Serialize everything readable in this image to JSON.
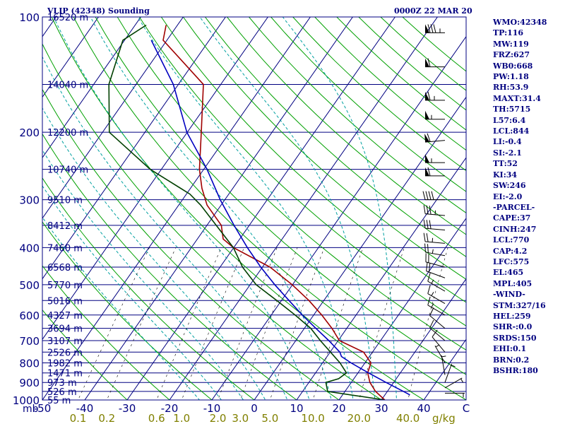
{
  "header": {
    "station": "VLIP (42348) Sounding",
    "time": "0000Z 22 MAR 20"
  },
  "colors": {
    "frame": "#000080",
    "isotherm": "#000080",
    "isobar": "#000080",
    "dry_adiabat": "#00a000",
    "moist_adiabat": "#00a0a0",
    "mixing_ratio": "#000000",
    "temperature": "#a00000",
    "dewpoint": "#004000",
    "parcel": "#0000c0",
    "mixing_label": "#808000",
    "wind_barb": "#000000"
  },
  "stats": [
    "WMO:42348",
    "TP:116",
    "MW:119",
    "FRZ:627",
    "WB0:668",
    "PW:1.18",
    "RH:53.9",
    "MAXT:31.4",
    "TH:5715",
    "L57:6.4",
    "LCL:844",
    "LI:-0.4",
    "SI:-2.1",
    "TT:52",
    "KI:34",
    "SW:246",
    "EI:-2.0",
    "-PARCEL-",
    "CAPE:37",
    "CINH:247",
    "LCL:770",
    "CAP:4.2",
    "LFC:575",
    "EL:465",
    "MPL:405",
    "-WIND-",
    "STM:327/16",
    "HEL:259",
    "SHR-:0.0",
    "SRDS:150",
    "EHI:0.1",
    "BRN:0.2",
    "BSHR:180"
  ],
  "chart_data": {
    "type": "line",
    "title": "VLIP (42348) Sounding",
    "subtitle": "0000Z 22 MAR 20",
    "x_axis": {
      "unit": "C",
      "range": [
        -50,
        50
      ],
      "ticks": [
        "-50",
        "-40",
        "-30",
        "-20",
        "-10",
        "0",
        "10",
        "20",
        "30",
        "40",
        "C"
      ]
    },
    "y_axis": {
      "unit": "mb",
      "scale": "log",
      "range": [
        100,
        1000
      ],
      "ticks": [
        100,
        200,
        300,
        400,
        500,
        600,
        700,
        800,
        900,
        1000
      ],
      "tick_labels": [
        "100",
        "200",
        "300",
        "400",
        "500",
        "600",
        "700",
        "800",
        "900",
        "1000"
      ],
      "unit_label": "mb"
    },
    "mixing_ratio_axis": {
      "labels": [
        "0.1",
        "0.2",
        "0.6",
        "1.0",
        "2.0",
        "3.0",
        "5.0",
        "10.0",
        "20.0",
        "40.0"
      ],
      "values": [
        0.1,
        0.2,
        0.6,
        1.0,
        2.0,
        3.0,
        5.0,
        10.0,
        20.0,
        40.0
      ],
      "unit": "g/kg"
    },
    "height_labels": [
      {
        "p": 100,
        "text": "16520 m"
      },
      {
        "p": 150,
        "text": "14040 m"
      },
      {
        "p": 200,
        "text": "12200 m"
      },
      {
        "p": 250,
        "text": "10740 m"
      },
      {
        "p": 300,
        "text": "9510 m"
      },
      {
        "p": 350,
        "text": "8412 m"
      },
      {
        "p": 400,
        "text": "7460 m"
      },
      {
        "p": 450,
        "text": "6568 m"
      },
      {
        "p": 500,
        "text": "5770 m"
      },
      {
        "p": 550,
        "text": "5016 m"
      },
      {
        "p": 600,
        "text": "4327 m"
      },
      {
        "p": 650,
        "text": "3694 m"
      },
      {
        "p": 700,
        "text": "3107 m"
      },
      {
        "p": 750,
        "text": "2526 m"
      },
      {
        "p": 800,
        "text": "1982 m"
      },
      {
        "p": 850,
        "text": "1471 m"
      },
      {
        "p": 900,
        "text": "973 m"
      },
      {
        "p": 950,
        "text": "526 m"
      },
      {
        "p": 1000,
        "text": "55 m"
      }
    ],
    "series": [
      {
        "name": "temperature",
        "color": "#a00000",
        "points": [
          [
            105,
            -82.7
          ],
          [
            115,
            -80.9
          ],
          [
            150,
            -64.1
          ],
          [
            200,
            -56.7
          ],
          [
            250,
            -51.0
          ],
          [
            280,
            -47.3
          ],
          [
            310,
            -43.3
          ],
          [
            350,
            -36.6
          ],
          [
            380,
            -33.9
          ],
          [
            400,
            -30.1
          ],
          [
            450,
            -18.2
          ],
          [
            500,
            -10.1
          ],
          [
            550,
            -3.5
          ],
          [
            600,
            1.9
          ],
          [
            650,
            6.5
          ],
          [
            700,
            10.3
          ],
          [
            750,
            17.9
          ],
          [
            800,
            21.4
          ],
          [
            850,
            22.3
          ],
          [
            900,
            24.4
          ],
          [
            950,
            27.2
          ],
          [
            1000,
            30.8
          ]
        ]
      },
      {
        "name": "dewpoint",
        "color": "#004000",
        "points": [
          [
            105,
            -87.4
          ],
          [
            115,
            -90.4
          ],
          [
            150,
            -86.4
          ],
          [
            200,
            -78.4
          ],
          [
            250,
            -62.6
          ],
          [
            290,
            -49.2
          ],
          [
            310,
            -44.8
          ],
          [
            350,
            -37.8
          ],
          [
            400,
            -30.1
          ],
          [
            450,
            -24.7
          ],
          [
            500,
            -18.6
          ],
          [
            550,
            -11.1
          ],
          [
            600,
            -4.4
          ],
          [
            650,
            1.5
          ],
          [
            700,
            5.8
          ],
          [
            750,
            10.1
          ],
          [
            800,
            14.1
          ],
          [
            850,
            17.3
          ],
          [
            880,
            16.4
          ],
          [
            900,
            14.0
          ],
          [
            950,
            15.9
          ],
          [
            1000,
            30.8
          ]
        ]
      },
      {
        "name": "parcel",
        "color": "#0000c0",
        "points": [
          [
            115,
            -83.7
          ],
          [
            150,
            -71.2
          ],
          [
            200,
            -60.1
          ],
          [
            250,
            -49.2
          ],
          [
            300,
            -41.1
          ],
          [
            350,
            -33.6
          ],
          [
            400,
            -26.8
          ],
          [
            450,
            -20.4
          ],
          [
            500,
            -14.2
          ],
          [
            550,
            -8.2
          ],
          [
            600,
            -2.7
          ],
          [
            650,
            2.7
          ],
          [
            700,
            7.8
          ],
          [
            750,
            12.3
          ],
          [
            770,
            13.4
          ],
          [
            800,
            16.7
          ],
          [
            850,
            22.5
          ],
          [
            900,
            28.2
          ],
          [
            950,
            33.8
          ],
          [
            970,
            35.9
          ]
        ]
      }
    ],
    "wind_barbs": [
      {
        "p": 110,
        "dir": 270,
        "kt": 85
      },
      {
        "p": 135,
        "dir": 270,
        "kt": 60
      },
      {
        "p": 165,
        "dir": 270,
        "kt": 65
      },
      {
        "p": 185,
        "dir": 270,
        "kt": 55
      },
      {
        "p": 210,
        "dir": 265,
        "kt": 60
      },
      {
        "p": 240,
        "dir": 270,
        "kt": 55
      },
      {
        "p": 260,
        "dir": 270,
        "kt": 60
      },
      {
        "p": 300,
        "dir": 270,
        "kt": 40
      },
      {
        "p": 330,
        "dir": 275,
        "kt": 35
      },
      {
        "p": 360,
        "dir": 275,
        "kt": 30
      },
      {
        "p": 390,
        "dir": 275,
        "kt": 25
      },
      {
        "p": 420,
        "dir": 280,
        "kt": 25
      },
      {
        "p": 450,
        "dir": 285,
        "kt": 20
      },
      {
        "p": 480,
        "dir": 290,
        "kt": 20
      },
      {
        "p": 520,
        "dir": 300,
        "kt": 15
      },
      {
        "p": 560,
        "dir": 300,
        "kt": 15
      },
      {
        "p": 600,
        "dir": 300,
        "kt": 15
      },
      {
        "p": 650,
        "dir": 310,
        "kt": 10
      },
      {
        "p": 700,
        "dir": 310,
        "kt": 10
      },
      {
        "p": 750,
        "dir": 320,
        "kt": 10
      },
      {
        "p": 800,
        "dir": 330,
        "kt": 5
      },
      {
        "p": 860,
        "dir": 350,
        "kt": 5
      },
      {
        "p": 900,
        "dir": 20,
        "kt": 5
      },
      {
        "p": 930,
        "dir": 60,
        "kt": 5
      },
      {
        "p": 960,
        "dir": 90,
        "kt": 5
      }
    ],
    "grid": true,
    "legend": "none"
  }
}
